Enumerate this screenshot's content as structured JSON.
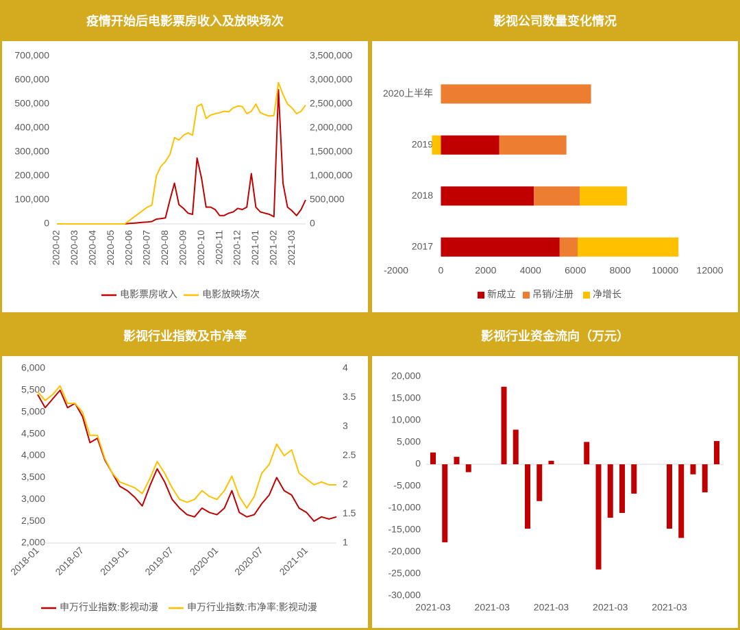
{
  "chart_data": [
    {
      "type": "line",
      "title": "疫情开始后电影票房收入及放映场次",
      "categories": [
        "2020-02",
        null,
        null,
        null,
        "2020-03",
        null,
        null,
        null,
        "2020-04",
        null,
        null,
        null,
        "2020-05",
        null,
        null,
        null,
        "2020-06",
        null,
        null,
        null,
        "2020-07",
        null,
        null,
        null,
        "2020-08",
        null,
        null,
        null,
        "2020-09",
        null,
        null,
        null,
        "2020-10",
        null,
        null,
        null,
        "2020-11",
        null,
        null,
        null,
        "2020-12",
        null,
        null,
        null,
        "2021-01",
        null,
        null,
        null,
        "2021-02",
        null,
        null,
        null,
        "2021-03",
        null,
        null,
        null
      ],
      "series": [
        {
          "name": "电影票房收入",
          "color": "#c00000",
          "values": [
            0,
            0,
            0,
            0,
            0,
            0,
            0,
            0,
            0,
            0,
            0,
            0,
            0,
            0,
            0,
            0,
            2000,
            3000,
            5000,
            7000,
            8000,
            10000,
            20000,
            22000,
            25000,
            100000,
            170000,
            80000,
            65000,
            45000,
            40000,
            275000,
            190000,
            70000,
            70000,
            60000,
            35000,
            35000,
            45000,
            50000,
            65000,
            60000,
            70000,
            210000,
            70000,
            50000,
            45000,
            40000,
            30000,
            560000,
            170000,
            70000,
            55000,
            35000,
            60000,
            100000
          ]
        },
        {
          "name": "电影放映场次",
          "color": "#ffc000",
          "axis": "y2",
          "values": [
            0,
            0,
            0,
            0,
            0,
            0,
            0,
            0,
            0,
            0,
            0,
            0,
            0,
            0,
            0,
            0,
            70000,
            140000,
            210000,
            280000,
            350000,
            390000,
            1000000,
            1200000,
            1300000,
            1450000,
            1800000,
            1750000,
            1850000,
            1900000,
            1850000,
            2450000,
            2500000,
            2200000,
            2270000,
            2300000,
            2320000,
            2350000,
            2340000,
            2420000,
            2460000,
            2450000,
            2300000,
            2350000,
            2500000,
            2320000,
            2280000,
            2250000,
            2260000,
            2950000,
            2700000,
            2500000,
            2420000,
            2300000,
            2350000,
            2480000
          ]
        }
      ],
      "ylim": [
        0,
        700000
      ],
      "yticks": [
        0,
        {
          "value": 100000,
          "label": "100,000"
        },
        {
          "value": 200000,
          "label": "200,000"
        },
        {
          "value": 300000,
          "label": "300,000"
        },
        {
          "value": 400000,
          "label": "400,000"
        },
        {
          "value": 500000,
          "label": "500,000"
        },
        {
          "value": 600000,
          "label": "600,000"
        },
        {
          "value": 700000,
          "label": "700,000"
        }
      ],
      "y2lim": [
        0,
        3500000
      ],
      "y2ticks": [
        0,
        {
          "value": 500000,
          "label": "500,000"
        },
        {
          "value": 1000000,
          "label": "1,000,000"
        },
        {
          "value": 1500000,
          "label": "1,500,000"
        },
        {
          "value": 2000000,
          "label": "2,000,000"
        },
        {
          "value": 2500000,
          "label": "2,500,000"
        },
        {
          "value": 3000000,
          "label": "3,000,000"
        },
        {
          "value": 3500000,
          "label": "3,500,000"
        }
      ],
      "legend": "bottom"
    },
    {
      "type": "bar",
      "orientation": "horizontal",
      "stacked": true,
      "title": "影视公司数量变化情况",
      "categories": [
        "2020上半年",
        "2019",
        "2018",
        "2017"
      ],
      "series": [
        {
          "name": "新成立",
          "color": "#c00000",
          "values": [
            null,
            2600,
            4150,
            5300
          ]
        },
        {
          "name": "吊销/注册",
          "color": "#ed7d31",
          "values": [
            6700,
            3000,
            2050,
            800
          ]
        },
        {
          "name": "净增长",
          "color": "#ffc000",
          "values": [
            null,
            -400,
            2100,
            4500
          ]
        }
      ],
      "xlim": [
        -2000,
        12000
      ],
      "xticks": [
        -2000,
        0,
        2000,
        4000,
        6000,
        8000,
        10000,
        12000
      ],
      "legend": "bottom"
    },
    {
      "type": "line",
      "title": "影视行业指数及市净率",
      "categories": [
        "2018-01",
        null,
        null,
        null,
        null,
        null,
        "2018-07",
        null,
        null,
        null,
        null,
        null,
        "2019-01",
        null,
        null,
        null,
        null,
        null,
        "2019-07",
        null,
        null,
        null,
        null,
        null,
        "2020-01",
        null,
        null,
        null,
        null,
        null,
        "2020-07",
        null,
        null,
        null,
        null,
        null,
        "2021-01",
        null,
        null,
        null,
        null
      ],
      "series": [
        {
          "name": "申万行业指数:影视动漫",
          "color": "#c00000",
          "values": [
            5400,
            5100,
            5300,
            5500,
            5100,
            5200,
            4900,
            4300,
            4400,
            3900,
            3600,
            3300,
            3200,
            3050,
            2850,
            3300,
            3700,
            3400,
            3000,
            2800,
            2650,
            2600,
            2800,
            2700,
            2650,
            2800,
            3200,
            2700,
            2600,
            2650,
            2900,
            3100,
            3500,
            3200,
            3100,
            2800,
            2700,
            2500,
            2600,
            2550,
            2600
          ]
        },
        {
          "name": "申万行业指数:市净率:影视动漫",
          "color": "#ffc000",
          "axis": "y2",
          "values": [
            3.6,
            3.45,
            3.55,
            3.7,
            3.4,
            3.4,
            3.25,
            2.85,
            2.85,
            2.45,
            2.2,
            2.05,
            2.0,
            1.95,
            1.85,
            2.1,
            2.4,
            2.2,
            1.95,
            1.75,
            1.7,
            1.75,
            1.9,
            1.8,
            1.75,
            1.9,
            2.15,
            1.8,
            1.6,
            1.8,
            2.2,
            2.35,
            2.7,
            2.5,
            2.6,
            2.2,
            2.1,
            2.0,
            2.05,
            2.0,
            2.0
          ]
        }
      ],
      "ylim": [
        2000,
        6000
      ],
      "yticks": [
        {
          "value": 2000,
          "label": "2,000"
        },
        {
          "value": 2500,
          "label": "2,500"
        },
        {
          "value": 3000,
          "label": "3,000"
        },
        {
          "value": 3500,
          "label": "3,500"
        },
        {
          "value": 4000,
          "label": "4,000"
        },
        {
          "value": 4500,
          "label": "4,500"
        },
        {
          "value": 5000,
          "label": "5,000"
        },
        {
          "value": 5500,
          "label": "5,500"
        },
        {
          "value": 6000,
          "label": "6,000"
        }
      ],
      "y2lim": [
        1,
        4
      ],
      "y2ticks": [
        1,
        1.5,
        2,
        2.5,
        3,
        3.5,
        4
      ],
      "legend": "bottom"
    },
    {
      "type": "bar",
      "title": "影视行业资金流向（万元）",
      "categories": [
        "2021-03",
        null,
        null,
        null,
        null,
        "2021-03",
        null,
        null,
        null,
        null,
        "2021-03",
        null,
        null,
        null,
        null,
        "2021-03",
        null,
        null,
        null,
        null,
        "2021-03",
        null,
        null,
        null,
        null
      ],
      "values": [
        2700,
        -17800,
        1700,
        -1800,
        null,
        null,
        17700,
        7900,
        -14700,
        -8400,
        800,
        null,
        null,
        5100,
        -24000,
        -12200,
        -11100,
        -6700,
        null,
        null,
        -14700,
        -16800,
        -2300,
        -6400,
        5300
      ],
      "color": "#c00000",
      "ylim": [
        -30000,
        20000
      ],
      "yticks": [
        {
          "value": -30000,
          "label": "-30,000"
        },
        {
          "value": -25000,
          "label": "-25,000"
        },
        {
          "value": -20000,
          "label": "-20,000"
        },
        {
          "value": -15000,
          "label": "-15,000"
        },
        {
          "value": -10000,
          "label": "-10,000"
        },
        {
          "value": -5000,
          "label": "-5,000"
        },
        0,
        {
          "value": 5000,
          "label": "5,000"
        },
        {
          "value": 10000,
          "label": "10,000"
        },
        {
          "value": 15000,
          "label": "15,000"
        },
        {
          "value": 20000,
          "label": "20,000"
        }
      ]
    }
  ]
}
